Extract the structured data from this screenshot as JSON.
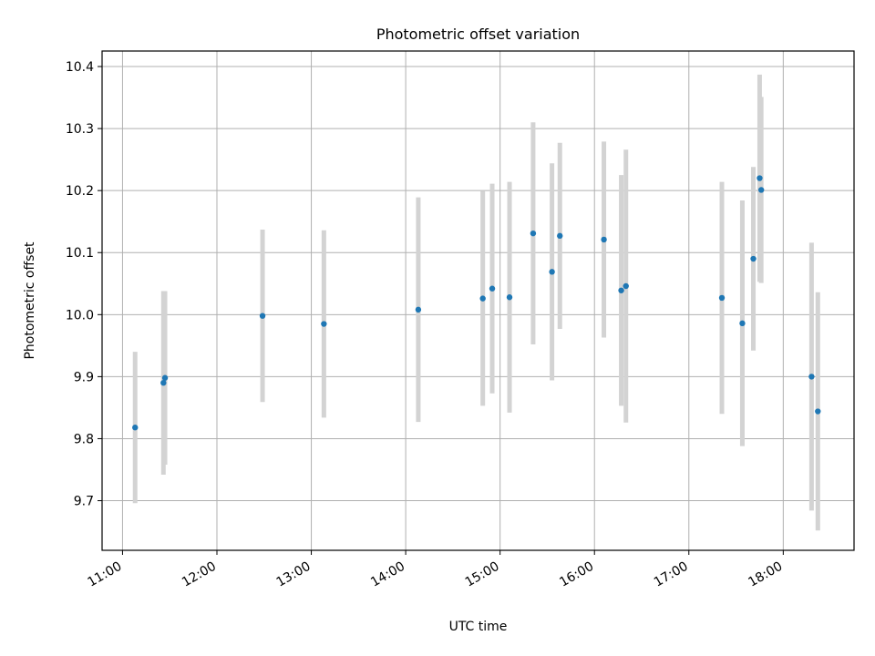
{
  "chart_data": {
    "type": "scatter",
    "title": "Photometric offset variation",
    "xlabel": "UTC time",
    "ylabel": "Photometric offset",
    "x_unit": "UTC hour",
    "xlim": [
      "10:47",
      "18:45"
    ],
    "ylim": [
      9.62,
      10.425
    ],
    "x_ticks": [
      "11:00",
      "12:00",
      "13:00",
      "14:00",
      "15:00",
      "16:00",
      "17:00",
      "18:00"
    ],
    "y_ticks": [
      "9.7",
      "9.8",
      "9.9",
      "10.0",
      "10.1",
      "10.2",
      "10.3",
      "10.4"
    ],
    "grid": true,
    "marker_color": "#1f77b4",
    "errorbar_color": "#d3d3d3",
    "points": [
      {
        "t": "11:08",
        "y": 9.818,
        "err": 0.122
      },
      {
        "t": "11:26",
        "y": 9.89,
        "err": 0.148
      },
      {
        "t": "11:27",
        "y": 9.898,
        "err": 0.14
      },
      {
        "t": "12:29",
        "y": 9.998,
        "err": 0.139
      },
      {
        "t": "13:08",
        "y": 9.985,
        "err": 0.151
      },
      {
        "t": "14:08",
        "y": 10.008,
        "err": 0.181
      },
      {
        "t": "14:49",
        "y": 10.026,
        "err": 0.173
      },
      {
        "t": "14:55",
        "y": 10.042,
        "err": 0.169
      },
      {
        "t": "15:06",
        "y": 10.028,
        "err": 0.186
      },
      {
        "t": "15:21",
        "y": 10.131,
        "err": 0.179
      },
      {
        "t": "15:33",
        "y": 10.069,
        "err": 0.175
      },
      {
        "t": "15:38",
        "y": 10.127,
        "err": 0.15
      },
      {
        "t": "16:06",
        "y": 10.121,
        "err": 0.158
      },
      {
        "t": "16:17",
        "y": 10.039,
        "err": 0.186
      },
      {
        "t": "16:20",
        "y": 10.046,
        "err": 0.22
      },
      {
        "t": "17:21",
        "y": 10.027,
        "err": 0.187
      },
      {
        "t": "17:34",
        "y": 9.986,
        "err": 0.198
      },
      {
        "t": "17:41",
        "y": 10.09,
        "err": 0.148
      },
      {
        "t": "17:45",
        "y": 10.22,
        "err": 0.167
      },
      {
        "t": "17:46",
        "y": 10.201,
        "err": 0.15
      },
      {
        "t": "18:18",
        "y": 9.9,
        "err": 0.216
      },
      {
        "t": "18:22",
        "y": 9.844,
        "err": 0.192
      }
    ]
  }
}
